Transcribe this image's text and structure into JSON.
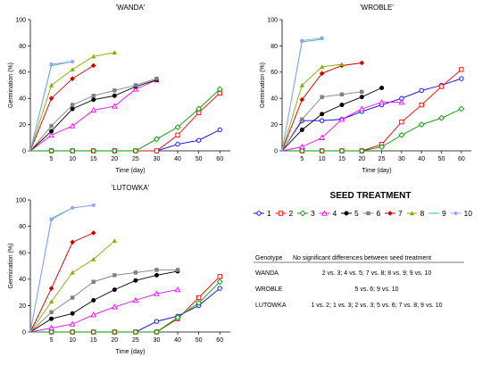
{
  "chart_data": [
    {
      "type": "line",
      "title": "'WANDA'",
      "xlabel": "Time (day)",
      "ylabel": "Germination (%)",
      "categories": [
        "5",
        "10",
        "15",
        "20",
        "25",
        "30",
        "40",
        "50",
        "60"
      ],
      "ylim": [
        0,
        100
      ],
      "yticks": [
        0,
        20,
        40,
        60,
        80,
        100
      ],
      "series": [
        {
          "name": "1",
          "values": [
            0,
            0,
            0,
            0,
            0,
            0,
            5,
            8,
            16
          ]
        },
        {
          "name": "2",
          "values": [
            0,
            0,
            0,
            0,
            0,
            0,
            12,
            29,
            44
          ]
        },
        {
          "name": "3",
          "values": [
            0,
            0,
            0,
            0,
            0,
            9,
            18,
            32,
            47
          ]
        },
        {
          "name": "4",
          "values": [
            12,
            19,
            31,
            34,
            47,
            54,
            null,
            null,
            null
          ]
        },
        {
          "name": "5",
          "values": [
            15,
            32,
            39,
            42,
            49,
            54,
            null,
            null,
            null
          ]
        },
        {
          "name": "6",
          "values": [
            19,
            35,
            42,
            46,
            50,
            55,
            null,
            null,
            null
          ]
        },
        {
          "name": "7",
          "values": [
            40,
            55,
            65,
            null,
            null,
            null,
            null,
            null,
            null
          ]
        },
        {
          "name": "8",
          "values": [
            50,
            62,
            72,
            75,
            null,
            null,
            null,
            null,
            null
          ]
        },
        {
          "name": "9",
          "values": [
            65,
            68,
            null,
            null,
            null,
            null,
            null,
            null,
            null
          ]
        },
        {
          "name": "10",
          "values": [
            66,
            68,
            null,
            null,
            null,
            null,
            null,
            null,
            null
          ]
        }
      ]
    },
    {
      "type": "line",
      "title": "'WROBLE'",
      "xlabel": "Time (day)",
      "ylabel": "Germination (%)",
      "categories": [
        "5",
        "10",
        "15",
        "20",
        "25",
        "30",
        "40",
        "50",
        "60"
      ],
      "ylim": [
        0,
        100
      ],
      "yticks": [
        0,
        20,
        40,
        60,
        80,
        100
      ],
      "series": [
        {
          "name": "1",
          "values": [
            23,
            23,
            24,
            30,
            35,
            40,
            46,
            50,
            55
          ]
        },
        {
          "name": "2",
          "values": [
            0,
            0,
            0,
            0,
            5,
            22,
            35,
            49,
            62
          ]
        },
        {
          "name": "3",
          "values": [
            0,
            0,
            0,
            0,
            3,
            12,
            20,
            25,
            32
          ]
        },
        {
          "name": "4",
          "values": [
            3,
            10,
            24,
            32,
            37,
            37,
            null,
            null,
            null
          ]
        },
        {
          "name": "5",
          "values": [
            16,
            28,
            35,
            41,
            48,
            null,
            null,
            null,
            null
          ]
        },
        {
          "name": "6",
          "values": [
            24,
            41,
            43,
            45,
            null,
            null,
            null,
            null,
            null
          ]
        },
        {
          "name": "7",
          "values": [
            39,
            59,
            65,
            67,
            null,
            null,
            null,
            null,
            null
          ]
        },
        {
          "name": "8",
          "values": [
            50,
            64,
            66,
            null,
            null,
            null,
            null,
            null,
            null
          ]
        },
        {
          "name": "9",
          "values": [
            83,
            85,
            null,
            null,
            null,
            null,
            null,
            null,
            null
          ]
        },
        {
          "name": "10",
          "values": [
            84,
            86,
            null,
            null,
            null,
            null,
            null,
            null,
            null
          ]
        }
      ]
    },
    {
      "type": "line",
      "title": "'LUTOWKA'",
      "xlabel": "Time (day)",
      "ylabel": "Germination (%)",
      "categories": [
        "5",
        "10",
        "15",
        "20",
        "25",
        "30",
        "40",
        "50",
        "60"
      ],
      "ylim": [
        0,
        100
      ],
      "yticks": [
        0,
        20,
        40,
        60,
        80,
        100
      ],
      "series": [
        {
          "name": "1",
          "values": [
            0,
            0,
            0,
            0,
            0,
            8,
            12,
            20,
            33
          ]
        },
        {
          "name": "2",
          "values": [
            0,
            0,
            0,
            0,
            0,
            0,
            10,
            26,
            42
          ]
        },
        {
          "name": "3",
          "values": [
            0,
            0,
            0,
            0,
            0,
            0,
            11,
            22,
            38
          ]
        },
        {
          "name": "4",
          "values": [
            3,
            6,
            13,
            19,
            24,
            29,
            32,
            null,
            null
          ]
        },
        {
          "name": "5",
          "values": [
            10,
            14,
            24,
            32,
            39,
            43,
            46,
            null,
            null
          ]
        },
        {
          "name": "6",
          "values": [
            15,
            26,
            38,
            43,
            45,
            47,
            47,
            null,
            null
          ]
        },
        {
          "name": "7",
          "values": [
            33,
            68,
            75,
            null,
            null,
            null,
            null,
            null,
            null
          ]
        },
        {
          "name": "8",
          "values": [
            23,
            45,
            55,
            69,
            null,
            null,
            null,
            null,
            null
          ]
        },
        {
          "name": "9",
          "values": [
            86,
            94,
            96,
            null,
            null,
            null,
            null,
            null,
            null
          ]
        },
        {
          "name": "10",
          "values": [
            85,
            94,
            96,
            null,
            null,
            null,
            null,
            null,
            null
          ]
        }
      ]
    }
  ],
  "legend": {
    "title": "SEED TREATMENT",
    "items": [
      {
        "label": "1",
        "color": "#0000ff",
        "marker": "circle-open"
      },
      {
        "label": "2",
        "color": "#ff0000",
        "marker": "square-open"
      },
      {
        "label": "3",
        "color": "#009900",
        "marker": "diamond-open"
      },
      {
        "label": "4",
        "color": "#ff00ff",
        "marker": "triangle-open"
      },
      {
        "label": "5",
        "color": "#000000",
        "marker": "circle"
      },
      {
        "label": "6",
        "color": "#808080",
        "marker": "square"
      },
      {
        "label": "7",
        "color": "#cc0000",
        "marker": "diamond"
      },
      {
        "label": "8",
        "color": "#88aa00",
        "marker": "triangle"
      },
      {
        "label": "9",
        "color": "#33cc99",
        "marker": "line"
      },
      {
        "label": "10",
        "color": "#9999ff",
        "marker": "star"
      }
    ]
  },
  "significance_table": {
    "header_genotype": "Genotype",
    "header_note": "No significant differences between seed treatment",
    "rows": [
      {
        "genotype": "WANDA",
        "note": "2 vs. 3; 4 vs. 5; 7 vs. 8; 8 vs. 9; 9 vs. 10"
      },
      {
        "genotype": "WROBLE",
        "note": "5 vs. 6; 9 vs. 10"
      },
      {
        "genotype": "LUTOWKA",
        "note": "1 vs. 2; 1 vs. 3; 2 vs. 3; 5 vs. 6; 7 vs. 8;  9 vs. 10"
      }
    ]
  }
}
